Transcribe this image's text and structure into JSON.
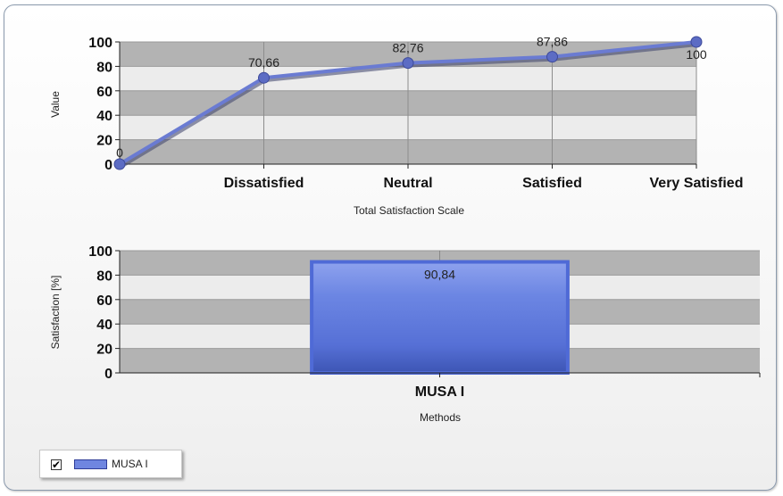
{
  "chart_data": [
    {
      "type": "line",
      "categories": [
        "",
        "Dissatisfied",
        "Neutral",
        "Satisfied",
        "Very Satisfied"
      ],
      "series": [
        {
          "values": [
            0,
            70.66,
            82.76,
            87.86,
            100
          ]
        }
      ],
      "data_labels": [
        "0",
        "70,66",
        "82,76",
        "87,86",
        "100"
      ],
      "xlabel": "Total Satisfaction Scale",
      "ylabel": "Value",
      "ylim": [
        0,
        100
      ],
      "yticks": [
        "0",
        "20",
        "40",
        "60",
        "80",
        "100"
      ],
      "grid": true,
      "color": "#6a7bd2"
    },
    {
      "type": "bar",
      "categories": [
        "MUSA I"
      ],
      "series": [
        {
          "name": "MUSA I",
          "values": [
            90.84
          ]
        }
      ],
      "data_labels": [
        "90,84"
      ],
      "xlabel": "Methods",
      "ylabel": "Satisfaction [%]",
      "ylim": [
        0,
        100
      ],
      "yticks": [
        "0",
        "20",
        "40",
        "60",
        "80",
        "100"
      ],
      "grid": true,
      "color": "#5b78d8"
    }
  ],
  "legend": {
    "placement": "bottom-left",
    "checked_symbol": "✔",
    "label": "MUSA I",
    "color": "#6f86e0"
  }
}
